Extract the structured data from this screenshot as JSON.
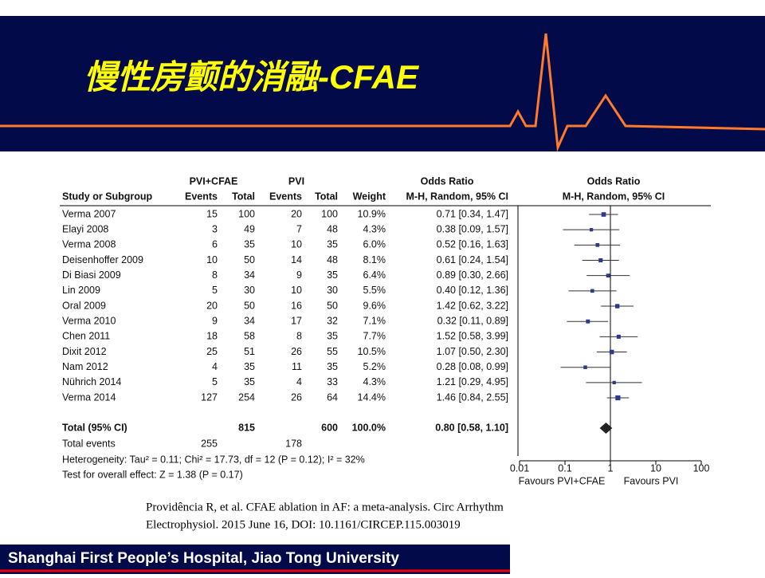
{
  "slide": {
    "title": "慢性房颤的消融-CFAE",
    "citation": [
      "Providência R, et al. CFAE ablation in AF: a meta-analysis. Circ Arrhythm",
      "Electrophysiol. 2015 June 16, DOI: 10.1161/CIRCEP.115.003019"
    ],
    "footer": "Shanghai First People’s Hospital, Jiao Tong University"
  },
  "chart_data": {
    "type": "forest",
    "headers": {
      "group1": "PVI+CFAE",
      "group2": "PVI",
      "study": "Study or Subgroup",
      "events1": "Events",
      "total1": "Total",
      "events2": "Events",
      "total2": "Total",
      "weight": "Weight",
      "or_title": "Odds Ratio",
      "or_method": "M-H, Random, 95% CI",
      "plot_title": "Odds Ratio",
      "plot_method": "M-H, Random, 95% CI"
    },
    "rows": [
      {
        "study": "Verma 2007",
        "e1": 15,
        "n1": 100,
        "e2": 20,
        "n2": 100,
        "weight": 10.9,
        "weight_label": "10.9%",
        "or": 0.71,
        "lo": 0.34,
        "hi": 1.47,
        "ci_label": "0.71 [0.34, 1.47]"
      },
      {
        "study": "Elayi 2008",
        "e1": 3,
        "n1": 49,
        "e2": 7,
        "n2": 48,
        "weight": 4.3,
        "weight_label": "4.3%",
        "or": 0.38,
        "lo": 0.09,
        "hi": 1.57,
        "ci_label": "0.38 [0.09, 1.57]"
      },
      {
        "study": "Verma 2008",
        "e1": 6,
        "n1": 35,
        "e2": 10,
        "n2": 35,
        "weight": 6.0,
        "weight_label": "6.0%",
        "or": 0.52,
        "lo": 0.16,
        "hi": 1.63,
        "ci_label": "0.52 [0.16, 1.63]"
      },
      {
        "study": "Deisenhoffer 2009",
        "e1": 10,
        "n1": 50,
        "e2": 14,
        "n2": 48,
        "weight": 8.1,
        "weight_label": "8.1%",
        "or": 0.61,
        "lo": 0.24,
        "hi": 1.54,
        "ci_label": "0.61 [0.24, 1.54]"
      },
      {
        "study": "Di Biasi 2009",
        "e1": 8,
        "n1": 34,
        "e2": 9,
        "n2": 35,
        "weight": 6.4,
        "weight_label": "6.4%",
        "or": 0.89,
        "lo": 0.3,
        "hi": 2.66,
        "ci_label": "0.89 [0.30, 2.66]"
      },
      {
        "study": "Lin 2009",
        "e1": 5,
        "n1": 30,
        "e2": 10,
        "n2": 30,
        "weight": 5.5,
        "weight_label": "5.5%",
        "or": 0.4,
        "lo": 0.12,
        "hi": 1.36,
        "ci_label": "0.40 [0.12, 1.36]"
      },
      {
        "study": "Oral 2009",
        "e1": 20,
        "n1": 50,
        "e2": 16,
        "n2": 50,
        "weight": 9.6,
        "weight_label": "9.6%",
        "or": 1.42,
        "lo": 0.62,
        "hi": 3.22,
        "ci_label": "1.42 [0.62, 3.22]"
      },
      {
        "study": "Verma 2010",
        "e1": 9,
        "n1": 34,
        "e2": 17,
        "n2": 32,
        "weight": 7.1,
        "weight_label": "7.1%",
        "or": 0.32,
        "lo": 0.11,
        "hi": 0.89,
        "ci_label": "0.32 [0.11, 0.89]"
      },
      {
        "study": "Chen 2011",
        "e1": 18,
        "n1": 58,
        "e2": 8,
        "n2": 35,
        "weight": 7.7,
        "weight_label": "7.7%",
        "or": 1.52,
        "lo": 0.58,
        "hi": 3.99,
        "ci_label": "1.52 [0.58, 3.99]"
      },
      {
        "study": "Dixit 2012",
        "e1": 25,
        "n1": 51,
        "e2": 26,
        "n2": 55,
        "weight": 10.5,
        "weight_label": "10.5%",
        "or": 1.07,
        "lo": 0.5,
        "hi": 2.3,
        "ci_label": "1.07 [0.50, 2.30]"
      },
      {
        "study": "Nam 2012",
        "e1": 4,
        "n1": 35,
        "e2": 11,
        "n2": 35,
        "weight": 5.2,
        "weight_label": "5.2%",
        "or": 0.28,
        "lo": 0.08,
        "hi": 0.99,
        "ci_label": "0.28 [0.08, 0.99]"
      },
      {
        "study": "Nührich 2014",
        "e1": 5,
        "n1": 35,
        "e2": 4,
        "n2": 33,
        "weight": 4.3,
        "weight_label": "4.3%",
        "or": 1.21,
        "lo": 0.29,
        "hi": 4.95,
        "ci_label": "1.21 [0.29, 4.95]"
      },
      {
        "study": "Verma 2014",
        "e1": 127,
        "n1": 254,
        "e2": 26,
        "n2": 64,
        "weight": 14.4,
        "weight_label": "14.4%",
        "or": 1.46,
        "lo": 0.84,
        "hi": 2.55,
        "ci_label": "1.46 [0.84, 2.55]"
      }
    ],
    "total": {
      "study": "Total (95% CI)",
      "n1": 815,
      "n2": 600,
      "weight": 100.0,
      "weight_label": "100.0%",
      "or": 0.8,
      "lo": 0.58,
      "hi": 1.1,
      "ci_label": "0.80 [0.58, 1.10]"
    },
    "total_events": {
      "label": "Total events",
      "e1": 255,
      "e2": 178
    },
    "heterogeneity": "Heterogeneity: Tau² = 0.11; Chi² = 17.73, df = 12 (P = 0.12); I² = 32%",
    "overall_effect": "Test for overall effect: Z = 1.38 (P = 0.17)",
    "xlim": [
      0.01,
      100
    ],
    "xticks": [
      0.01,
      0.1,
      1,
      10,
      100
    ],
    "log_scale": true,
    "favours_left": "Favours PVI+CFAE",
    "favours_right": "Favours PVI",
    "square_color": "#2b3a8c",
    "line_color": "#333333",
    "diamond_color": "#222222"
  }
}
